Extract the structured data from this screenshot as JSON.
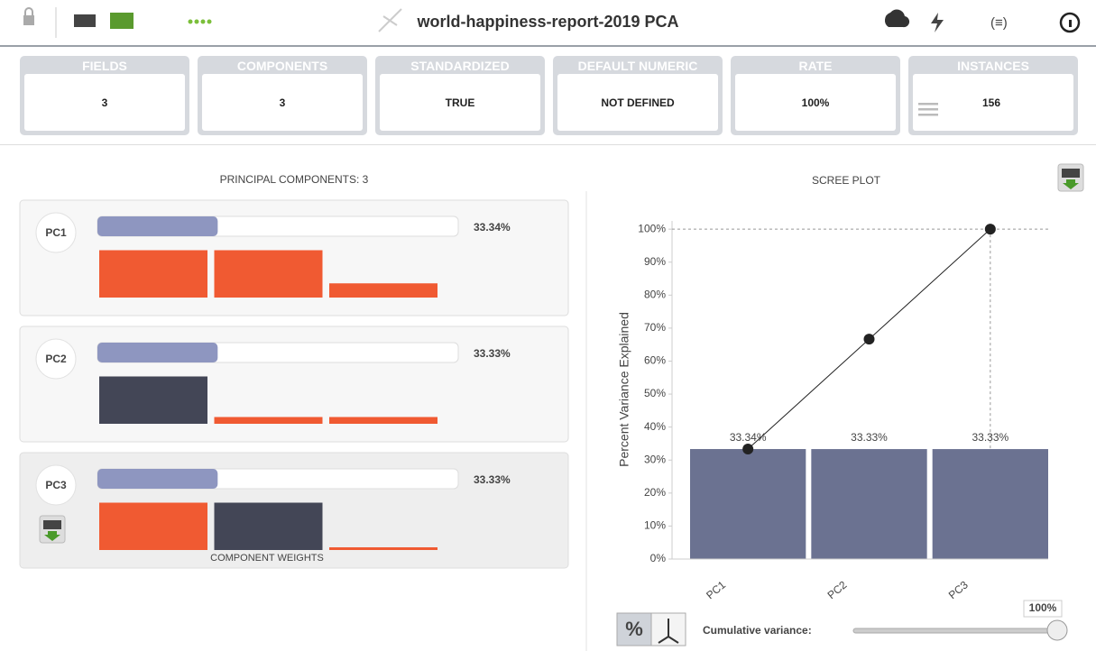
{
  "header": {
    "title": "world-happiness-report-2019 PCA"
  },
  "summary": [
    {
      "label": "FIELDS",
      "value": "3"
    },
    {
      "label": "COMPONENTS",
      "value": "3"
    },
    {
      "label": "STANDARDIZED",
      "value": "TRUE"
    },
    {
      "label": "DEFAULT NUMERIC",
      "value": "NOT DEFINED"
    },
    {
      "label": "RATE",
      "value": "100%"
    },
    {
      "label": "INSTANCES",
      "value": "156"
    }
  ],
  "components": {
    "title": "PRINCIPAL COMPONENTS: 3",
    "footer": "COMPONENT WEIGHTS",
    "positive_color": "#434656",
    "negative_color": "#f05a32",
    "items": [
      {
        "name": "PC1",
        "percent": 33.34,
        "percent_label": "33.34%",
        "weights": [
          -0.7,
          -0.7,
          -0.21
        ]
      },
      {
        "name": "PC2",
        "percent": 33.33,
        "percent_label": "33.33%",
        "weights": [
          0.7,
          -0.1,
          -0.1
        ]
      },
      {
        "name": "PC3",
        "percent": 33.33,
        "percent_label": "33.33%",
        "weights": [
          -0.7,
          0.7,
          -0.04
        ]
      }
    ]
  },
  "chart_data": {
    "type": "bar",
    "title": "SCREE PLOT",
    "ylabel": "Percent Variance Explained",
    "categories": [
      "PC1",
      "PC2",
      "PC3"
    ],
    "values": [
      33.34,
      33.33,
      33.33
    ],
    "value_labels": [
      "33.34%",
      "33.33%",
      "33.33%"
    ],
    "color": "#6b7291",
    "cumulative": [
      33.34,
      66.67,
      100
    ],
    "line_color": "#222222",
    "ylim": [
      0,
      102.5
    ],
    "yticks": [
      {
        "value": 0,
        "label": "0%"
      },
      {
        "value": 10,
        "label": "10%"
      },
      {
        "value": 20,
        "label": "20%"
      },
      {
        "value": 30,
        "label": "30%"
      },
      {
        "value": 40,
        "label": "40%"
      },
      {
        "value": 50,
        "label": "50%"
      },
      {
        "value": 60,
        "label": "60%"
      },
      {
        "value": 70,
        "label": "70%"
      },
      {
        "value": 80,
        "label": "80%"
      },
      {
        "value": 90,
        "label": "90%"
      },
      {
        "value": 100,
        "label": "100%"
      }
    ]
  },
  "controls": {
    "slider_label": "Cumulative variance:",
    "slider_value": 100,
    "slider_value_label": "100%",
    "toggle": "%"
  }
}
